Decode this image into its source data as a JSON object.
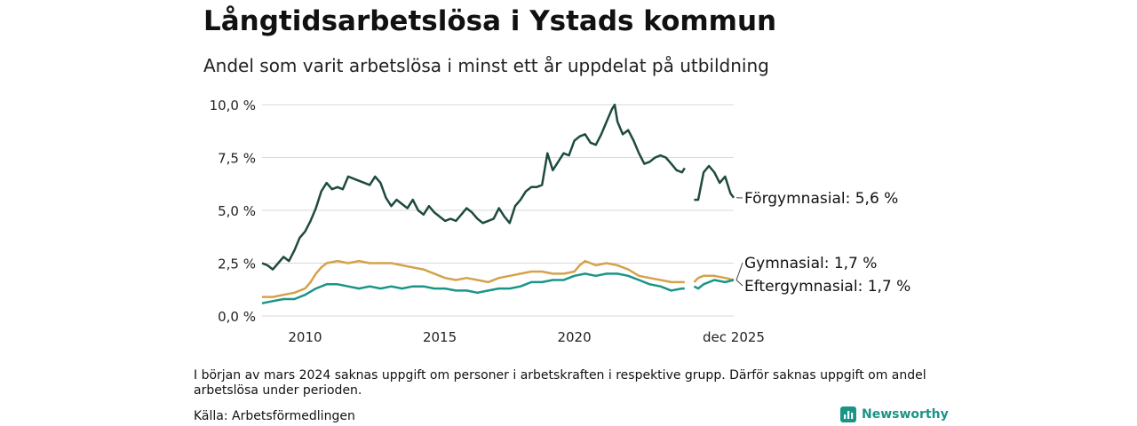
{
  "title": "Långtidsarbetslösa i Ystads kommun",
  "subtitle": "Andel som varit arbetslösa i minst ett år uppdelat på utbildning",
  "note": "I början av mars 2024 saknas uppgift om personer i arbetskraften i respektive grupp. Därför saknas uppgift om andel arbetslösa under perioden.",
  "source": "Källa: Arbetsförmedlingen",
  "brand": "Newsworthy",
  "colors": {
    "forgymnasial": "#1e4a40",
    "gymnasial": "#d4a24c",
    "eftergymnasial": "#1a9486",
    "grid": "#d9d9d9",
    "brand": "#1a9486"
  },
  "chart_data": {
    "type": "line",
    "title": "Långtidsarbetslösa i Ystads kommun",
    "xlabel": "",
    "ylabel": "",
    "xlim": [
      2008.4,
      2025.92
    ],
    "ylim": [
      0,
      10
    ],
    "yticks": [
      0,
      2.5,
      5,
      7.5,
      10
    ],
    "ytick_labels": [
      "0,0 %",
      "2,5 %",
      "5,0 %",
      "7,5 %",
      "10,0 %"
    ],
    "xticks": [
      2010,
      2015,
      2020,
      2025.92
    ],
    "xtick_labels": [
      "2010",
      "2015",
      "2020",
      "dec 2025"
    ],
    "gap": [
      2024.17,
      2024.33
    ],
    "series": [
      {
        "name": "Förgymnasial",
        "label": "Förgymnasial: 5,6 %",
        "color_key": "forgymnasial",
        "points": [
          [
            2008.4,
            2.5
          ],
          [
            2008.6,
            2.4
          ],
          [
            2008.8,
            2.2
          ],
          [
            2009.0,
            2.5
          ],
          [
            2009.2,
            2.8
          ],
          [
            2009.4,
            2.6
          ],
          [
            2009.6,
            3.1
          ],
          [
            2009.8,
            3.7
          ],
          [
            2010.0,
            4.0
          ],
          [
            2010.2,
            4.5
          ],
          [
            2010.4,
            5.1
          ],
          [
            2010.6,
            5.9
          ],
          [
            2010.8,
            6.3
          ],
          [
            2011.0,
            6.0
          ],
          [
            2011.2,
            6.1
          ],
          [
            2011.4,
            6.0
          ],
          [
            2011.6,
            6.6
          ],
          [
            2011.8,
            6.5
          ],
          [
            2012.0,
            6.4
          ],
          [
            2012.2,
            6.3
          ],
          [
            2012.4,
            6.2
          ],
          [
            2012.6,
            6.6
          ],
          [
            2012.8,
            6.3
          ],
          [
            2013.0,
            5.6
          ],
          [
            2013.2,
            5.2
          ],
          [
            2013.4,
            5.5
          ],
          [
            2013.6,
            5.3
          ],
          [
            2013.8,
            5.1
          ],
          [
            2014.0,
            5.5
          ],
          [
            2014.2,
            5.0
          ],
          [
            2014.4,
            4.8
          ],
          [
            2014.6,
            5.2
          ],
          [
            2014.8,
            4.9
          ],
          [
            2015.0,
            4.7
          ],
          [
            2015.2,
            4.5
          ],
          [
            2015.4,
            4.6
          ],
          [
            2015.6,
            4.5
          ],
          [
            2015.8,
            4.8
          ],
          [
            2016.0,
            5.1
          ],
          [
            2016.2,
            4.9
          ],
          [
            2016.4,
            4.6
          ],
          [
            2016.6,
            4.4
          ],
          [
            2016.8,
            4.5
          ],
          [
            2017.0,
            4.6
          ],
          [
            2017.2,
            5.1
          ],
          [
            2017.4,
            4.7
          ],
          [
            2017.6,
            4.4
          ],
          [
            2017.8,
            5.2
          ],
          [
            2018.0,
            5.5
          ],
          [
            2018.2,
            5.9
          ],
          [
            2018.4,
            6.1
          ],
          [
            2018.6,
            6.1
          ],
          [
            2018.8,
            6.2
          ],
          [
            2019.0,
            7.7
          ],
          [
            2019.2,
            6.9
          ],
          [
            2019.4,
            7.3
          ],
          [
            2019.6,
            7.7
          ],
          [
            2019.8,
            7.6
          ],
          [
            2020.0,
            8.3
          ],
          [
            2020.2,
            8.5
          ],
          [
            2020.4,
            8.6
          ],
          [
            2020.6,
            8.2
          ],
          [
            2020.8,
            8.1
          ],
          [
            2021.0,
            8.6
          ],
          [
            2021.2,
            9.2
          ],
          [
            2021.4,
            9.8
          ],
          [
            2021.5,
            10.0
          ],
          [
            2021.6,
            9.2
          ],
          [
            2021.8,
            8.6
          ],
          [
            2022.0,
            8.8
          ],
          [
            2022.2,
            8.3
          ],
          [
            2022.4,
            7.7
          ],
          [
            2022.6,
            7.2
          ],
          [
            2022.8,
            7.3
          ],
          [
            2023.0,
            7.5
          ],
          [
            2023.2,
            7.6
          ],
          [
            2023.4,
            7.5
          ],
          [
            2023.6,
            7.2
          ],
          [
            2023.8,
            6.9
          ],
          [
            2024.0,
            6.8
          ],
          [
            2024.1,
            7.0
          ],
          null,
          [
            2024.45,
            5.5
          ],
          [
            2024.6,
            5.5
          ],
          [
            2024.8,
            6.8
          ],
          [
            2025.0,
            7.1
          ],
          [
            2025.2,
            6.8
          ],
          [
            2025.4,
            6.3
          ],
          [
            2025.6,
            6.6
          ],
          [
            2025.8,
            5.8
          ],
          [
            2025.92,
            5.6
          ]
        ]
      },
      {
        "name": "Gymnasial",
        "label": "Gymnasial: 1,7 %",
        "color_key": "gymnasial",
        "points": [
          [
            2008.4,
            0.9
          ],
          [
            2008.8,
            0.9
          ],
          [
            2009.2,
            1.0
          ],
          [
            2009.6,
            1.1
          ],
          [
            2010.0,
            1.3
          ],
          [
            2010.2,
            1.6
          ],
          [
            2010.4,
            2.0
          ],
          [
            2010.6,
            2.3
          ],
          [
            2010.8,
            2.5
          ],
          [
            2011.2,
            2.6
          ],
          [
            2011.6,
            2.5
          ],
          [
            2012.0,
            2.6
          ],
          [
            2012.4,
            2.5
          ],
          [
            2012.8,
            2.5
          ],
          [
            2013.2,
            2.5
          ],
          [
            2013.6,
            2.4
          ],
          [
            2014.0,
            2.3
          ],
          [
            2014.4,
            2.2
          ],
          [
            2014.8,
            2.0
          ],
          [
            2015.2,
            1.8
          ],
          [
            2015.6,
            1.7
          ],
          [
            2016.0,
            1.8
          ],
          [
            2016.4,
            1.7
          ],
          [
            2016.8,
            1.6
          ],
          [
            2017.2,
            1.8
          ],
          [
            2017.6,
            1.9
          ],
          [
            2018.0,
            2.0
          ],
          [
            2018.4,
            2.1
          ],
          [
            2018.8,
            2.1
          ],
          [
            2019.2,
            2.0
          ],
          [
            2019.6,
            2.0
          ],
          [
            2020.0,
            2.1
          ],
          [
            2020.2,
            2.4
          ],
          [
            2020.4,
            2.6
          ],
          [
            2020.8,
            2.4
          ],
          [
            2021.2,
            2.5
          ],
          [
            2021.6,
            2.4
          ],
          [
            2022.0,
            2.2
          ],
          [
            2022.4,
            1.9
          ],
          [
            2022.8,
            1.8
          ],
          [
            2023.2,
            1.7
          ],
          [
            2023.6,
            1.6
          ],
          [
            2024.0,
            1.6
          ],
          [
            2024.1,
            1.6
          ],
          null,
          [
            2024.45,
            1.6
          ],
          [
            2024.6,
            1.8
          ],
          [
            2024.8,
            1.9
          ],
          [
            2025.2,
            1.9
          ],
          [
            2025.6,
            1.8
          ],
          [
            2025.92,
            1.7
          ]
        ]
      },
      {
        "name": "Eftergymnasial",
        "label": "Eftergymnasial: 1,7 %",
        "color_key": "eftergymnasial",
        "points": [
          [
            2008.4,
            0.6
          ],
          [
            2008.8,
            0.7
          ],
          [
            2009.2,
            0.8
          ],
          [
            2009.6,
            0.8
          ],
          [
            2010.0,
            1.0
          ],
          [
            2010.4,
            1.3
          ],
          [
            2010.8,
            1.5
          ],
          [
            2011.2,
            1.5
          ],
          [
            2011.6,
            1.4
          ],
          [
            2012.0,
            1.3
          ],
          [
            2012.4,
            1.4
          ],
          [
            2012.8,
            1.3
          ],
          [
            2013.2,
            1.4
          ],
          [
            2013.6,
            1.3
          ],
          [
            2014.0,
            1.4
          ],
          [
            2014.4,
            1.4
          ],
          [
            2014.8,
            1.3
          ],
          [
            2015.2,
            1.3
          ],
          [
            2015.6,
            1.2
          ],
          [
            2016.0,
            1.2
          ],
          [
            2016.4,
            1.1
          ],
          [
            2016.8,
            1.2
          ],
          [
            2017.2,
            1.3
          ],
          [
            2017.6,
            1.3
          ],
          [
            2018.0,
            1.4
          ],
          [
            2018.4,
            1.6
          ],
          [
            2018.8,
            1.6
          ],
          [
            2019.2,
            1.7
          ],
          [
            2019.6,
            1.7
          ],
          [
            2020.0,
            1.9
          ],
          [
            2020.4,
            2.0
          ],
          [
            2020.8,
            1.9
          ],
          [
            2021.2,
            2.0
          ],
          [
            2021.6,
            2.0
          ],
          [
            2022.0,
            1.9
          ],
          [
            2022.4,
            1.7
          ],
          [
            2022.8,
            1.5
          ],
          [
            2023.2,
            1.4
          ],
          [
            2023.6,
            1.2
          ],
          [
            2024.0,
            1.3
          ],
          [
            2024.1,
            1.3
          ],
          null,
          [
            2024.45,
            1.4
          ],
          [
            2024.6,
            1.3
          ],
          [
            2024.8,
            1.5
          ],
          [
            2025.2,
            1.7
          ],
          [
            2025.6,
            1.6
          ],
          [
            2025.92,
            1.7
          ]
        ]
      }
    ]
  }
}
